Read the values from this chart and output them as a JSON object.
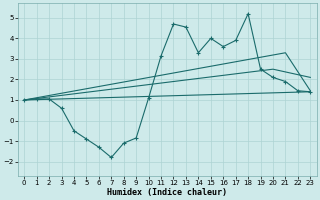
{
  "title": "",
  "xlabel": "Humidex (Indice chaleur)",
  "bg_color": "#ceeaea",
  "line_color": "#1a6b6b",
  "grid_color": "#aed4d4",
  "xlim": [
    -0.5,
    23.5
  ],
  "ylim": [
    -2.7,
    5.7
  ],
  "xticks": [
    0,
    1,
    2,
    3,
    4,
    5,
    6,
    7,
    8,
    9,
    10,
    11,
    12,
    13,
    14,
    15,
    16,
    17,
    18,
    19,
    20,
    21,
    22,
    23
  ],
  "yticks": [
    -2,
    -1,
    0,
    1,
    2,
    3,
    4,
    5
  ],
  "line1_x": [
    0,
    1,
    2,
    3,
    4,
    5,
    6,
    7,
    8,
    9,
    10,
    11,
    12,
    13,
    14,
    15,
    16,
    17,
    18,
    19,
    20,
    21,
    22,
    23
  ],
  "line1_y": [
    1.0,
    1.05,
    1.05,
    0.6,
    -0.5,
    -0.9,
    -1.3,
    -1.8,
    -1.1,
    -0.85,
    1.1,
    3.15,
    4.7,
    4.55,
    3.3,
    4.0,
    3.6,
    3.9,
    5.2,
    2.5,
    2.1,
    1.9,
    1.45,
    1.4
  ],
  "line2_x": [
    0,
    20,
    23
  ],
  "line2_y": [
    1.0,
    2.5,
    2.1
  ],
  "line3_x": [
    0,
    21,
    23
  ],
  "line3_y": [
    1.0,
    3.3,
    1.45
  ],
  "line4_x": [
    0,
    23
  ],
  "line4_y": [
    1.0,
    1.4
  ]
}
